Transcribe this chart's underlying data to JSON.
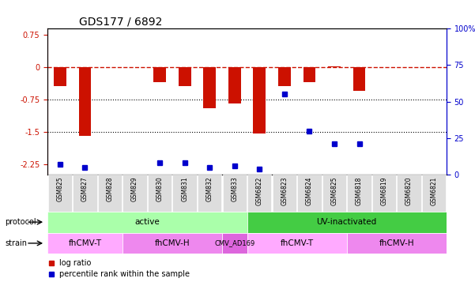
{
  "title": "GDS177 / 6892",
  "samples": [
    "GSM825",
    "GSM827",
    "GSM828",
    "GSM829",
    "GSM830",
    "GSM831",
    "GSM832",
    "GSM833",
    "GSM6822",
    "GSM6823",
    "GSM6824",
    "GSM6825",
    "GSM6818",
    "GSM6819",
    "GSM6820",
    "GSM6821"
  ],
  "log_ratio": [
    -0.45,
    -1.6,
    0.0,
    0.0,
    -0.35,
    -0.45,
    -0.95,
    -0.85,
    -1.55,
    -0.45,
    -0.35,
    0.02,
    -0.55,
    0.0,
    0.0,
    0.0
  ],
  "percentile": [
    7,
    5,
    null,
    null,
    8,
    8,
    5,
    6,
    4,
    55,
    30,
    21,
    21,
    null,
    null,
    null
  ],
  "ylim_left": [
    -2.5,
    0.9
  ],
  "ylim_right": [
    0,
    100
  ],
  "hline_y0": 0,
  "hline_y1": -0.75,
  "hline_y2": -1.5,
  "protocol_labels": [
    {
      "text": "active",
      "start": 0,
      "end": 8,
      "color": "#aaffaa"
    },
    {
      "text": "UV-inactivated",
      "start": 8,
      "end": 16,
      "color": "#44cc44"
    }
  ],
  "strain_labels": [
    {
      "text": "fhCMV-T",
      "start": 0,
      "end": 3,
      "color": "#ffaaff"
    },
    {
      "text": "fhCMV-H",
      "start": 3,
      "end": 7,
      "color": "#ee88ee"
    },
    {
      "text": "CMV_AD169",
      "start": 7,
      "end": 8,
      "color": "#dd66dd"
    },
    {
      "text": "fhCMV-T",
      "start": 8,
      "end": 12,
      "color": "#ffaaff"
    },
    {
      "text": "fhCMV-H",
      "start": 12,
      "end": 16,
      "color": "#ee88ee"
    }
  ],
  "bar_color": "#cc1100",
  "dot_color": "#0000cc",
  "zero_line_color": "#cc1100",
  "grid_color": "#000000"
}
